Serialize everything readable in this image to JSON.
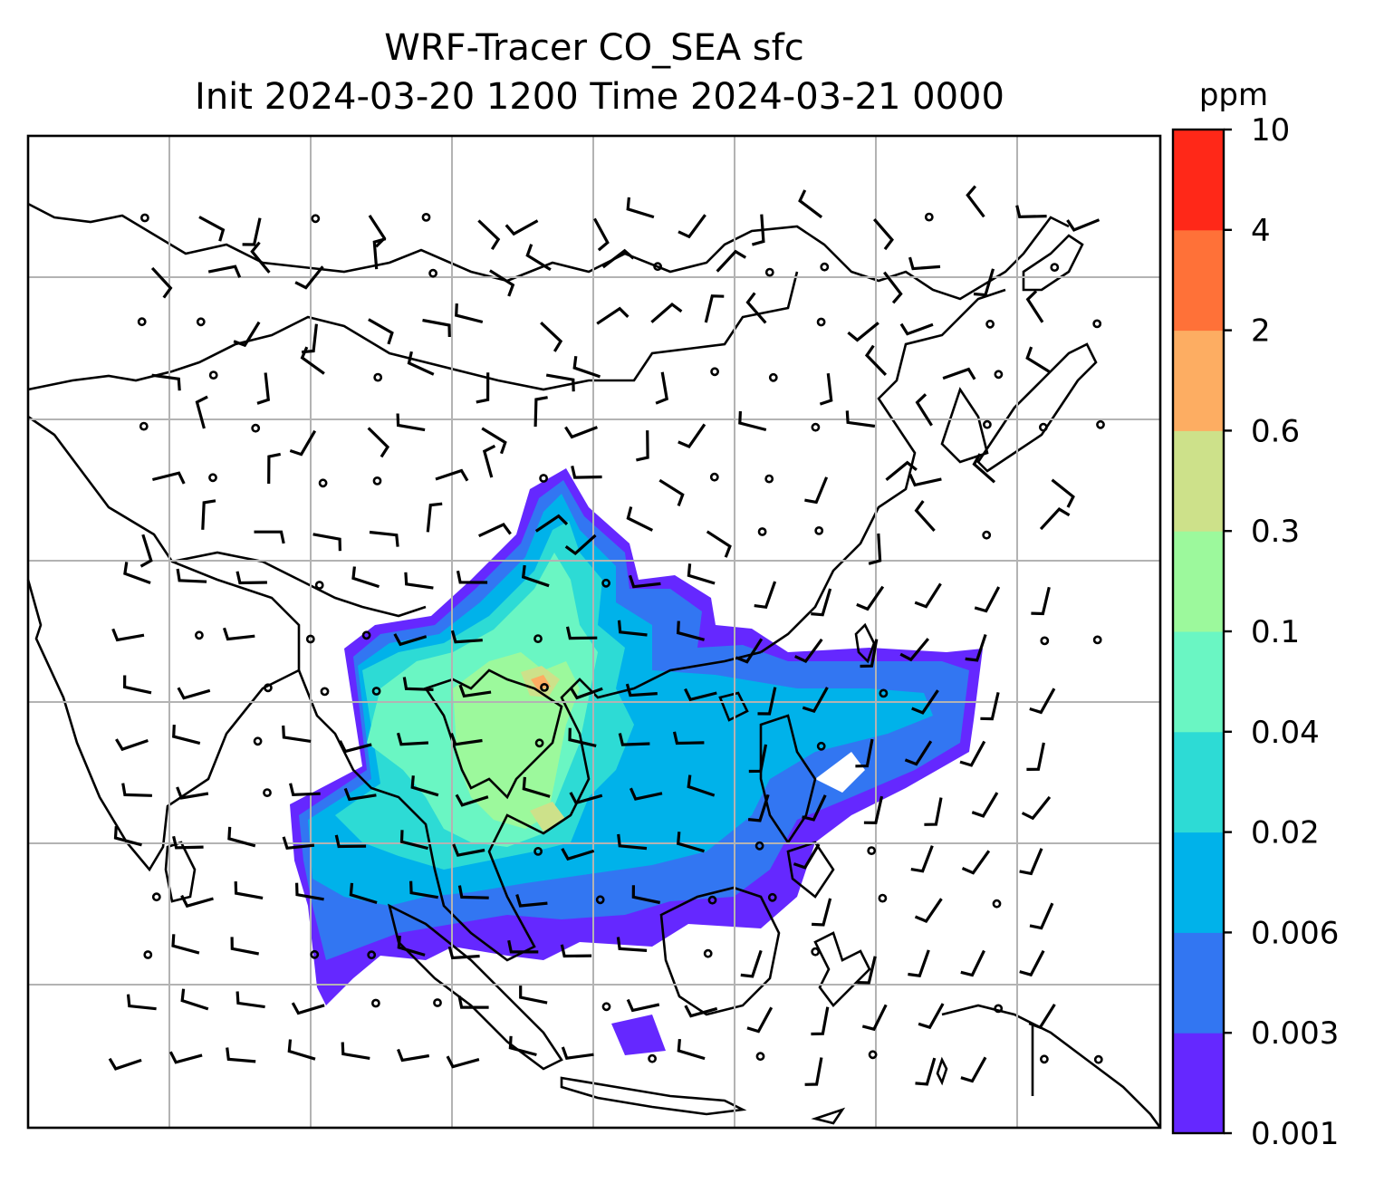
{
  "title": {
    "line1": "WRF-Tracer CO_SEA sfc",
    "line2": "Init 2024-03-20 1200 Time 2024-03-21 0000"
  },
  "colorbar": {
    "unit": "ppm",
    "levels": [
      "0.001",
      "0.003",
      "0.006",
      "0.02",
      "0.04",
      "0.1",
      "0.3",
      "0.6",
      "2",
      "4",
      "10"
    ],
    "colors": [
      "#6528ff",
      "#3276f2",
      "#00b2ea",
      "#2ddbd5",
      "#6af6c3",
      "#9cf99c",
      "#cde18a",
      "#fdad62",
      "#ff7138",
      "#ff2818"
    ]
  },
  "map": {
    "projection": "lat-lon grid",
    "gridlines": true,
    "content": "Surface CO_SEA tracer concentration over Southeast Asia with wind barbs and calm-wind circles"
  }
}
